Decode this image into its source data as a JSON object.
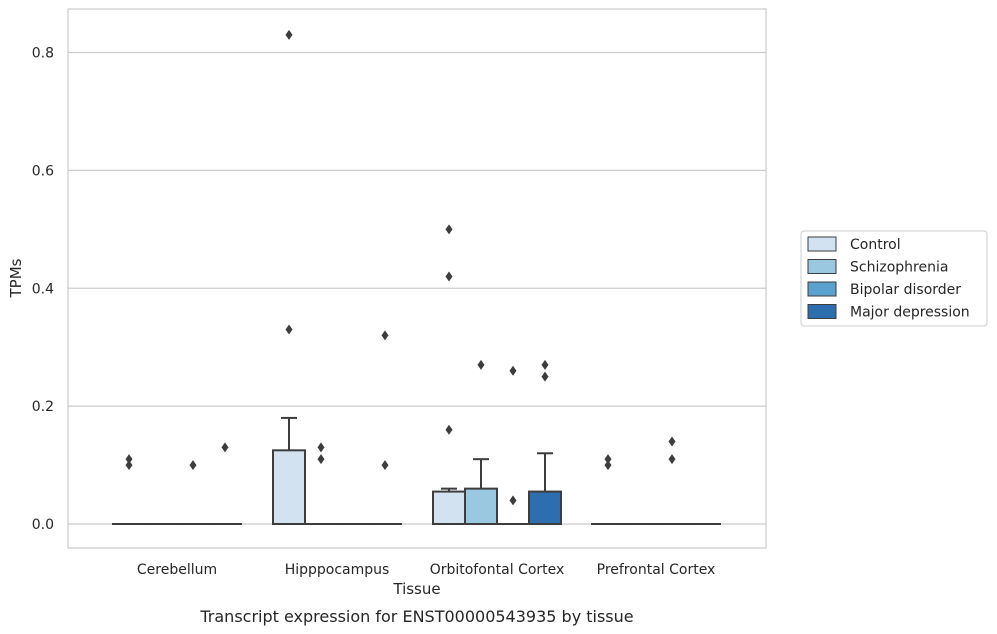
{
  "chart_data": {
    "type": "box",
    "xlabel": "Tissue",
    "ylabel": "TPMs",
    "caption": "Transcript expression for ENST00000543935 by tissue",
    "categories": [
      "Cerebellum",
      "Hipppocampus",
      "Orbitofontal Cortex",
      "Prefrontal Cortex"
    ],
    "ylim": [
      -0.04,
      0.873
    ],
    "yticks": [
      0.0,
      0.2,
      0.4,
      0.6,
      0.8
    ],
    "ytick_labels": [
      "0.0",
      "0.2",
      "0.4",
      "0.6",
      "0.8"
    ],
    "grid": true,
    "legend_position": "right",
    "series": [
      {
        "name": "Control",
        "color": "#d2e2f1",
        "boxes": [
          {
            "q1": 0,
            "median": 0,
            "q3": 0,
            "whisker_low": 0,
            "whisker_high": 0,
            "outliers": [
              0.1,
              0.11
            ]
          },
          {
            "q1": 0,
            "median": 0,
            "q3": 0.125,
            "whisker_low": 0,
            "whisker_high": 0.18,
            "outliers": [
              0.33,
              0.83
            ]
          },
          {
            "q1": 0,
            "median": 0,
            "q3": 0.055,
            "whisker_low": 0,
            "whisker_high": 0.06,
            "outliers": [
              0.16,
              0.42,
              0.5
            ]
          },
          {
            "q1": 0,
            "median": 0,
            "q3": 0,
            "whisker_low": 0,
            "whisker_high": 0,
            "outliers": [
              0.1,
              0.11
            ]
          }
        ]
      },
      {
        "name": "Schizophrenia",
        "color": "#9ac8e0",
        "boxes": [
          {
            "q1": 0,
            "median": 0,
            "q3": 0,
            "whisker_low": 0,
            "whisker_high": 0,
            "outliers": []
          },
          {
            "q1": 0,
            "median": 0,
            "q3": 0,
            "whisker_low": 0,
            "whisker_high": 0,
            "outliers": [
              0.11,
              0.13
            ]
          },
          {
            "q1": 0,
            "median": 0,
            "q3": 0.06,
            "whisker_low": 0,
            "whisker_high": 0.11,
            "outliers": [
              0.27
            ]
          },
          {
            "q1": 0,
            "median": 0,
            "q3": 0,
            "whisker_low": 0,
            "whisker_high": 0,
            "outliers": []
          }
        ]
      },
      {
        "name": "Bipolar disorder",
        "color": "#5aa1cf",
        "boxes": [
          {
            "q1": 0,
            "median": 0,
            "q3": 0,
            "whisker_low": 0,
            "whisker_high": 0,
            "outliers": [
              0.1
            ]
          },
          {
            "q1": 0,
            "median": 0,
            "q3": 0,
            "whisker_low": 0,
            "whisker_high": 0,
            "outliers": []
          },
          {
            "q1": 0,
            "median": 0,
            "q3": 0,
            "whisker_low": 0,
            "whisker_high": 0,
            "outliers": [
              0.04,
              0.26
            ]
          },
          {
            "q1": 0,
            "median": 0,
            "q3": 0,
            "whisker_low": 0,
            "whisker_high": 0,
            "outliers": [
              0.11,
              0.14
            ]
          }
        ]
      },
      {
        "name": "Major depression",
        "color": "#2d6eaf",
        "boxes": [
          {
            "q1": 0,
            "median": 0,
            "q3": 0,
            "whisker_low": 0,
            "whisker_high": 0,
            "outliers": [
              0.13
            ]
          },
          {
            "q1": 0,
            "median": 0,
            "q3": 0,
            "whisker_low": 0,
            "whisker_high": 0,
            "outliers": [
              0.1,
              0.32
            ]
          },
          {
            "q1": 0,
            "median": 0,
            "q3": 0.055,
            "whisker_low": 0,
            "whisker_high": 0.12,
            "outliers": [
              0.25,
              0.27
            ]
          },
          {
            "q1": 0,
            "median": 0,
            "q3": 0,
            "whisker_low": 0,
            "whisker_high": 0,
            "outliers": []
          }
        ]
      }
    ]
  }
}
